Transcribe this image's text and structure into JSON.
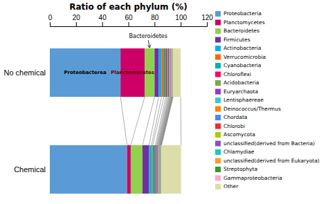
{
  "chart_data": {
    "type": "bar",
    "orientation": "horizontal",
    "stacked": true,
    "title": "Ratio of each phylum (%)",
    "categories": [
      "No chemical",
      "Chemical"
    ],
    "annotations": [
      "Proteobacterea",
      "Planctomycetes",
      "Bacteroidetes"
    ],
    "xlim": [
      0,
      120
    ],
    "xticks": [
      0,
      20,
      40,
      60,
      80,
      100,
      120
    ],
    "grid": false,
    "legend": "right",
    "series": [
      {
        "name": "Proteobacteria",
        "color": "#5b9bd5",
        "values": [
          54.0,
          59.0
        ]
      },
      {
        "name": "Planctomycetes",
        "color": "#cc0066",
        "values": [
          18.5,
          2.8
        ]
      },
      {
        "name": "Bacteroidetes",
        "color": "#92d050",
        "values": [
          7.5,
          9.0
        ]
      },
      {
        "name": "Firmicutes",
        "color": "#7030a0",
        "values": [
          3.2,
          5.0
        ]
      },
      {
        "name": "Actinobacteria",
        "color": "#00b0f0",
        "values": [
          2.2,
          1.8
        ]
      },
      {
        "name": "Verrucomicrobia",
        "color": "#ff6600",
        "values": [
          1.8,
          1.0
        ]
      },
      {
        "name": "Cyanobacteria",
        "color": "#00b0b0",
        "values": [
          1.4,
          2.0
        ]
      },
      {
        "name": "Chloroflexi",
        "color": "#ff0066",
        "values": [
          1.0,
          0.7
        ]
      },
      {
        "name": "Acidobacteria",
        "color": "#70ad47",
        "values": [
          0.8,
          0.6
        ]
      },
      {
        "name": "Euryarchaota",
        "color": "#9933cc",
        "values": [
          0.6,
          0.5
        ]
      },
      {
        "name": "Lentisphaereae",
        "color": "#33cccc",
        "values": [
          0.5,
          0.4
        ]
      },
      {
        "name": "Deinococcus/Thermus",
        "color": "#ff8000",
        "values": [
          0.4,
          0.35
        ]
      },
      {
        "name": "Chordata",
        "color": "#4488ff",
        "values": [
          0.4,
          0.35
        ]
      },
      {
        "name": "Chlorobi",
        "color": "#ff2233",
        "values": [
          0.35,
          0.35
        ]
      },
      {
        "name": "Ascomycota",
        "color": "#aacc00",
        "values": [
          0.3,
          0.3
        ]
      },
      {
        "name": "unclassified(derived from Bacteria)",
        "color": "#8855bb",
        "values": [
          0.3,
          0.25
        ]
      },
      {
        "name": "Chlamydiae",
        "color": "#11cccc",
        "values": [
          0.25,
          0.25
        ]
      },
      {
        "name": "unclassified(derived from Eukaryota)",
        "color": "#ff9933",
        "values": [
          0.25,
          0.25
        ]
      },
      {
        "name": "Streptophyta",
        "color": "#339933",
        "values": [
          0.25,
          0.25
        ]
      },
      {
        "name": "Gammaproteobacteria",
        "color": "#ffaacc",
        "values": [
          0.2,
          0.2
        ]
      },
      {
        "name": "Other",
        "color": "#ddddaa",
        "values": [
          5.75,
          14.9
        ]
      }
    ]
  }
}
